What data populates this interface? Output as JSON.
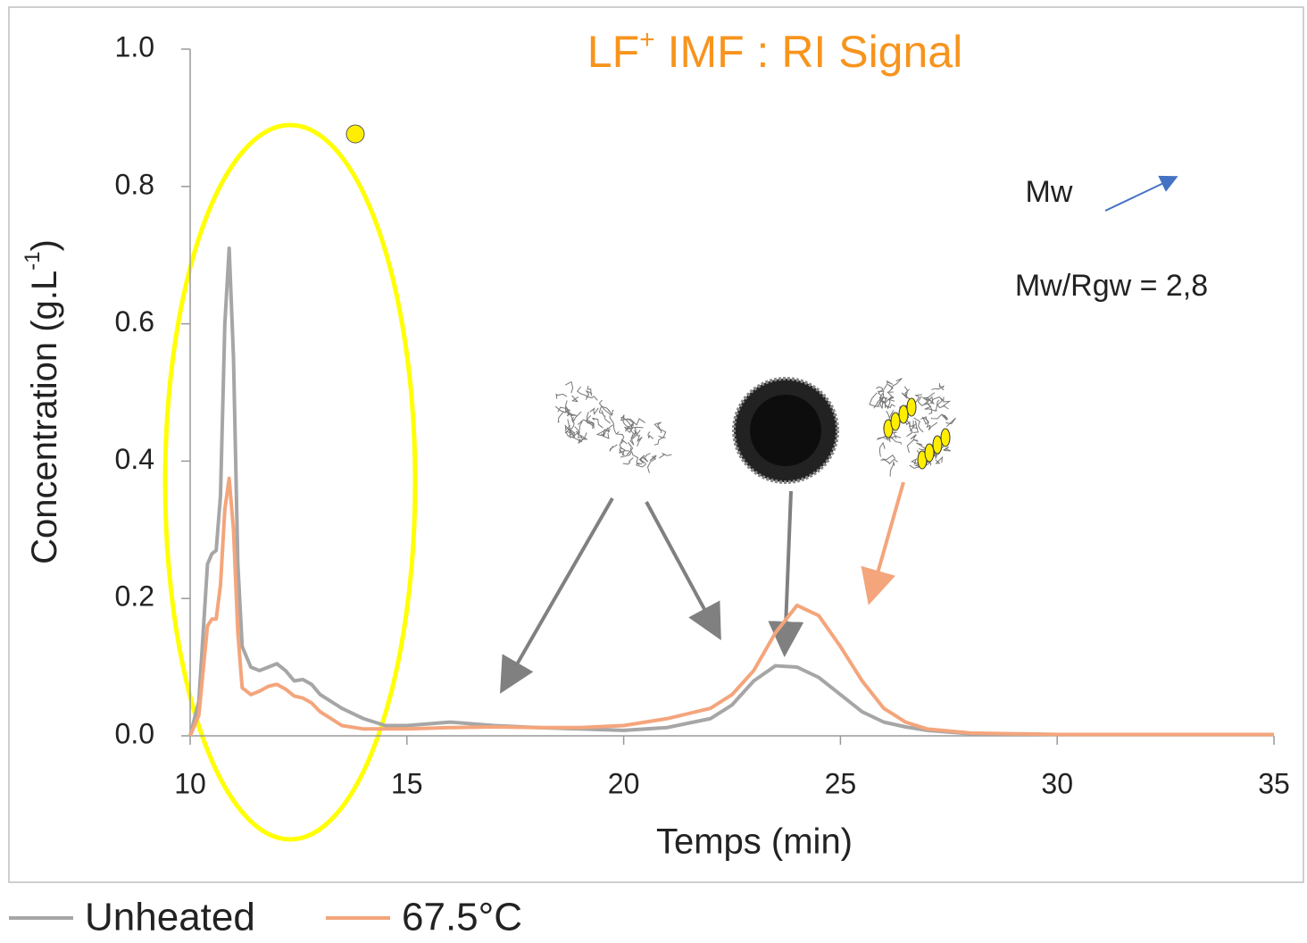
{
  "chart_data": {
    "type": "line",
    "title": {
      "main": "LF",
      "sup": "+",
      "rest": " IMF : RI Signal"
    },
    "x_label": "Temps (min)",
    "y_label": {
      "main": "Concentration (g.L",
      "sup": "-1",
      "end": ")"
    },
    "annotations": [
      "Mw",
      "Mw/Rgw = 2,8"
    ],
    "x": [
      10,
      10.2,
      10.4,
      10.5,
      10.6,
      10.7,
      10.8,
      10.9,
      11,
      11.1,
      11.2,
      11.4,
      11.6,
      11.8,
      12,
      12.2,
      12.4,
      12.6,
      12.8,
      13,
      13.5,
      14,
      14.5,
      15,
      16,
      17,
      18,
      19,
      20,
      21,
      22,
      22.5,
      23,
      23.5,
      24,
      24.5,
      25,
      25.5,
      26,
      26.5,
      27,
      28,
      30,
      32,
      35
    ],
    "series": [
      {
        "name": "Unheated",
        "color": "#a6a6a6",
        "values": [
          0,
          0.05,
          0.25,
          0.265,
          0.27,
          0.35,
          0.6,
          0.71,
          0.55,
          0.25,
          0.13,
          0.1,
          0.095,
          0.1,
          0.105,
          0.095,
          0.08,
          0.082,
          0.075,
          0.06,
          0.04,
          0.025,
          0.015,
          0.015,
          0.02,
          0.015,
          0.012,
          0.01,
          0.008,
          0.012,
          0.025,
          0.045,
          0.08,
          0.102,
          0.1,
          0.085,
          0.06,
          0.035,
          0.02,
          0.013,
          0.008,
          0.003,
          0.002,
          0.002,
          0.002
        ]
      },
      {
        "name": "67.5°C",
        "color": "#f4a57c",
        "values": [
          0,
          0.03,
          0.16,
          0.17,
          0.17,
          0.22,
          0.33,
          0.375,
          0.3,
          0.15,
          0.07,
          0.06,
          0.065,
          0.072,
          0.075,
          0.068,
          0.058,
          0.055,
          0.048,
          0.035,
          0.015,
          0.01,
          0.01,
          0.01,
          0.012,
          0.013,
          0.012,
          0.012,
          0.015,
          0.025,
          0.04,
          0.06,
          0.095,
          0.15,
          0.19,
          0.175,
          0.13,
          0.08,
          0.04,
          0.02,
          0.01,
          0.004,
          0.002,
          0.002,
          0.002
        ]
      }
    ],
    "xlim": [
      10,
      35
    ],
    "xticks": [
      10,
      15,
      20,
      25,
      30,
      35
    ],
    "ylim": [
      0,
      1
    ],
    "yticks": [
      {
        "value": 0,
        "label": "0.0"
      },
      0.2,
      0.4,
      0.6,
      0.8,
      {
        "value": 1,
        "label": "1.0"
      }
    ],
    "grid": false,
    "legend": "bottom-left"
  }
}
